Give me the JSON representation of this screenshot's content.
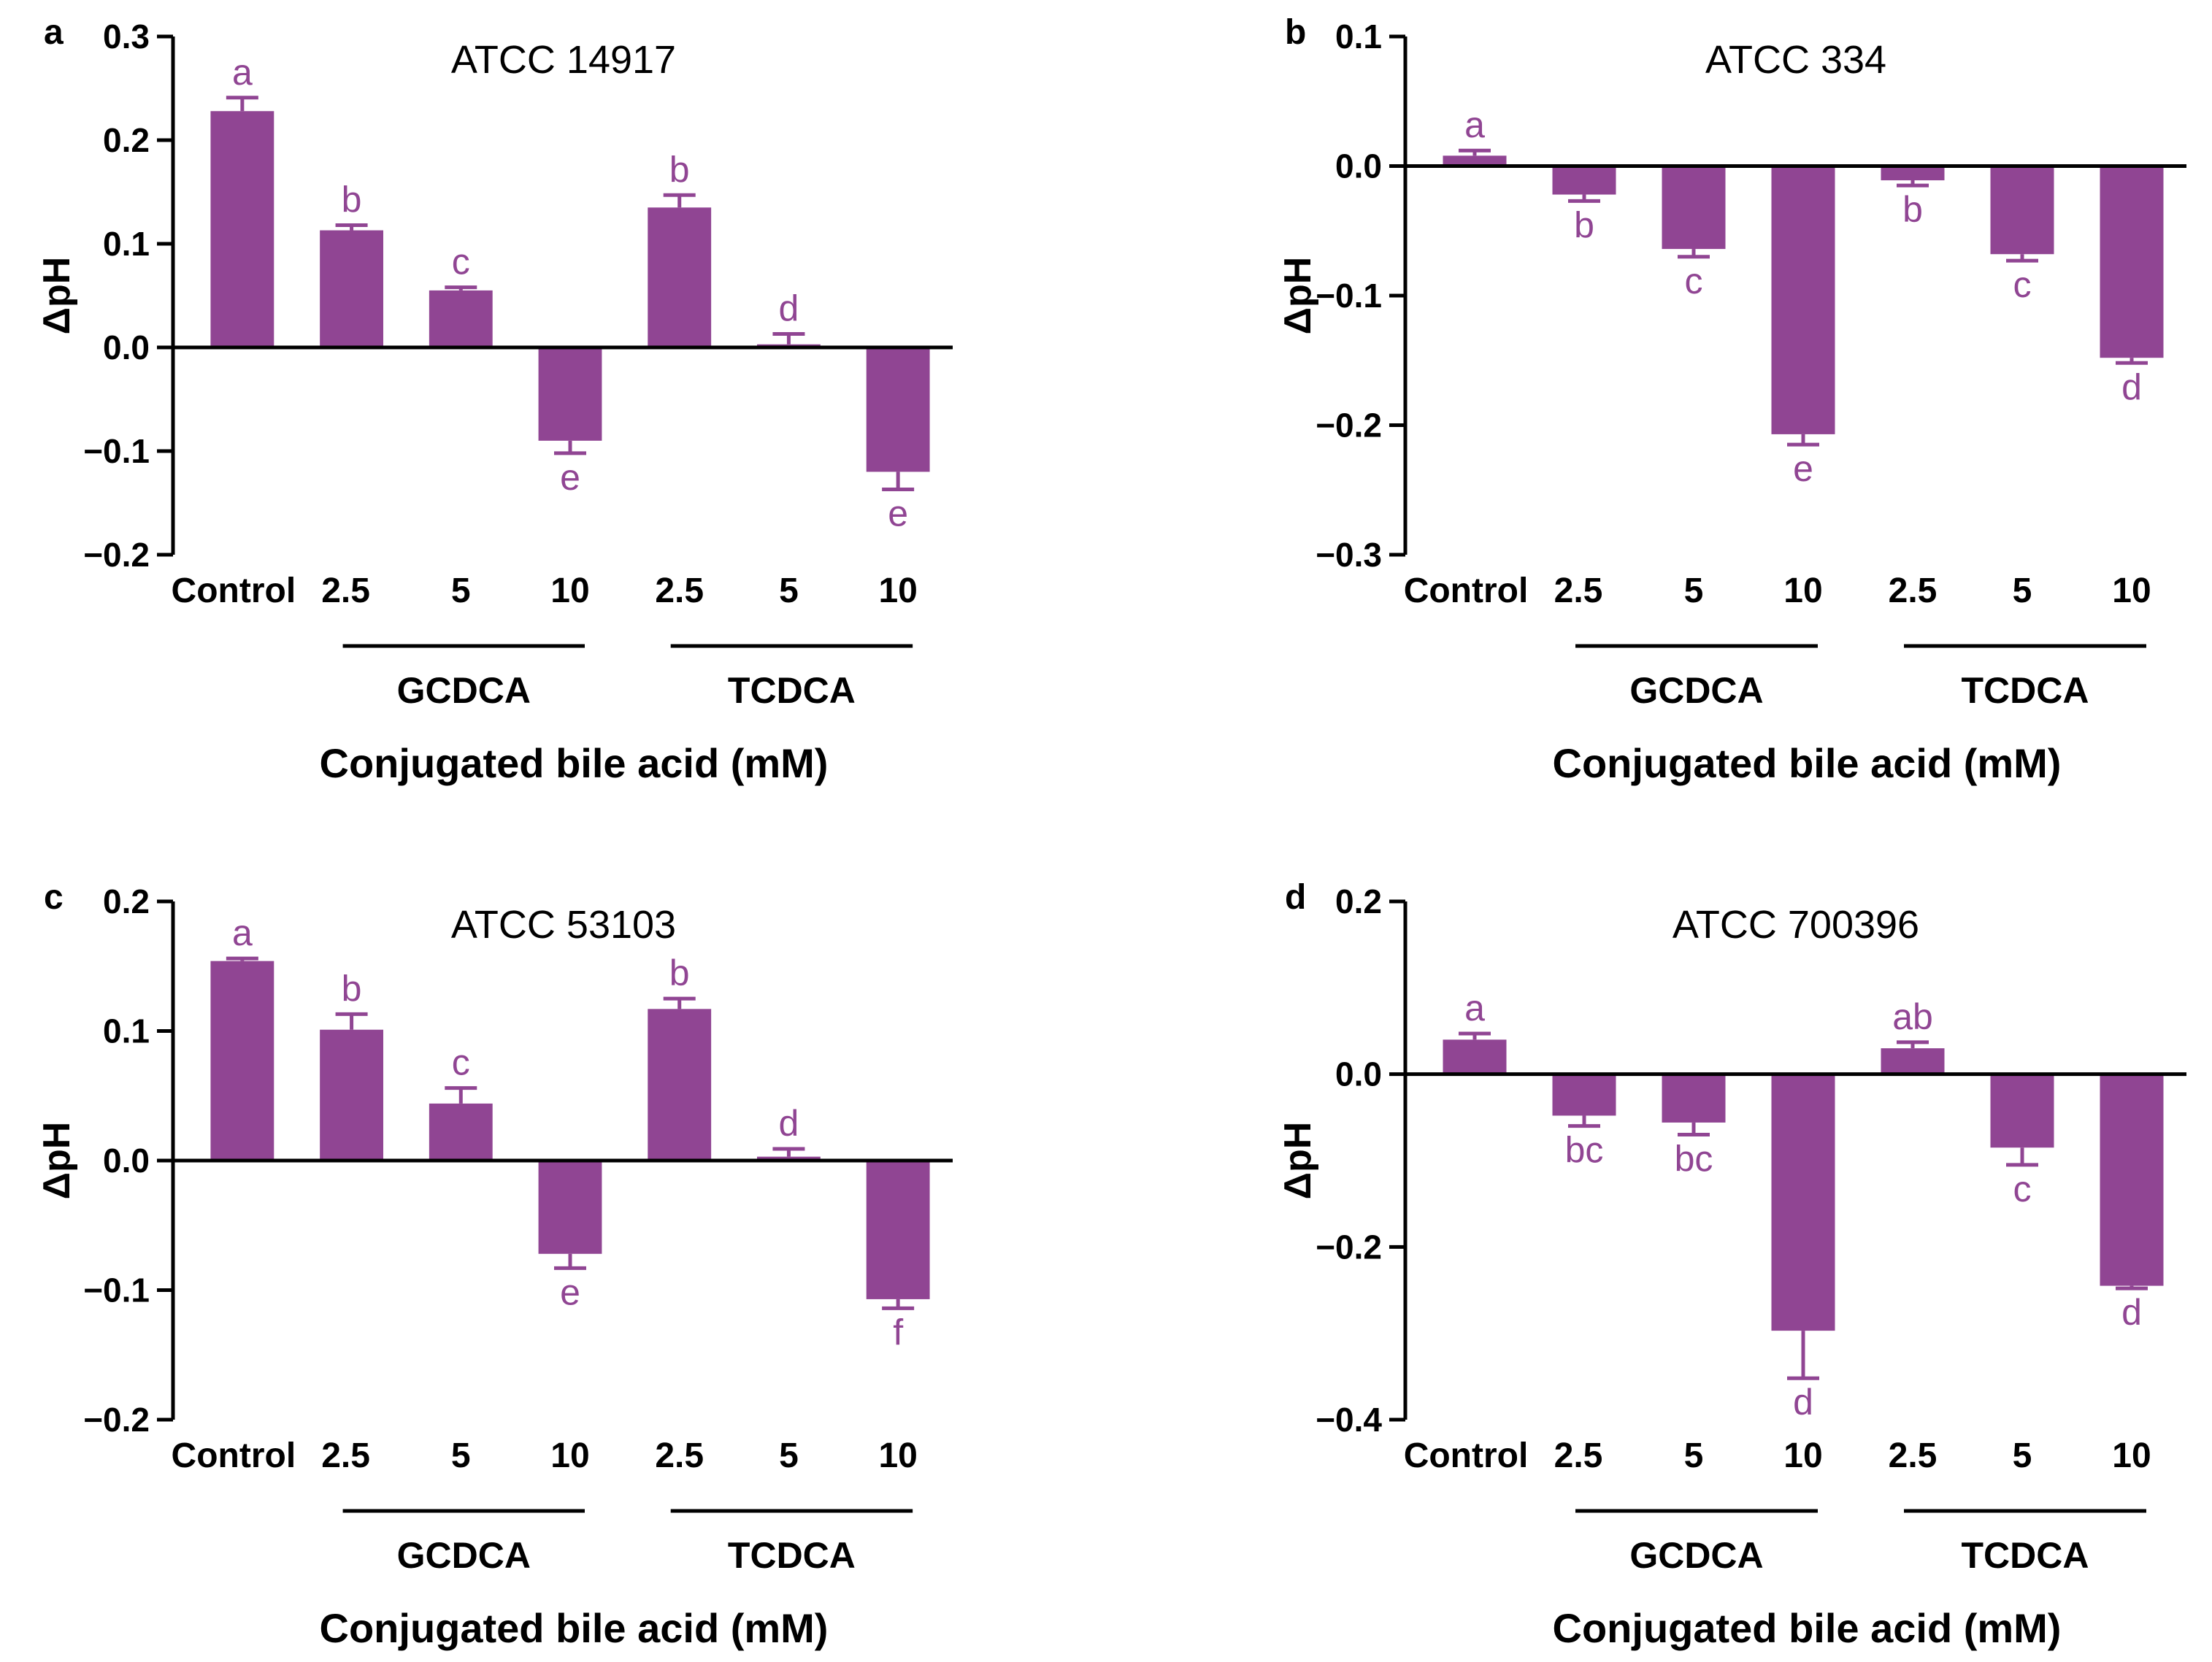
{
  "colors": {
    "bar": "#904593",
    "letter": "#904593",
    "axis": "#000000"
  },
  "chart_data": [
    {
      "type": "bar",
      "panel": "a",
      "title": "ATCC 14917",
      "xlabel": "Conjugated bile acid (mM)",
      "ylabel": "ΔpH",
      "ylim": [
        -0.2,
        0.3
      ],
      "yticks": [
        -0.2,
        -0.1,
        0.0,
        0.1,
        0.2,
        0.3
      ],
      "ytick_labels": [
        "−0.2",
        "−0.1",
        "0.0",
        "0.1",
        "0.2",
        "0.3"
      ],
      "categories": [
        "Control",
        "2.5",
        "5",
        "10",
        "2.5",
        "5",
        "10"
      ],
      "groups": [
        {
          "label": "GCDCA",
          "from": 1,
          "to": 3
        },
        {
          "label": "TCDCA",
          "from": 4,
          "to": 6
        }
      ],
      "values": [
        0.228,
        0.113,
        0.055,
        -0.09,
        0.135,
        0.003,
        -0.12
      ],
      "errors": [
        0.013,
        0.005,
        0.003,
        0.012,
        0.012,
        0.01,
        0.017
      ],
      "letters": [
        "a",
        "b",
        "c",
        "e",
        "b",
        "d",
        "e"
      ]
    },
    {
      "type": "bar",
      "panel": "b",
      "title": "ATCC 334",
      "xlabel": "Conjugated bile acid (mM)",
      "ylabel": "ΔpH",
      "ylim": [
        -0.3,
        0.1
      ],
      "yticks": [
        -0.3,
        -0.2,
        -0.1,
        0.0,
        0.1
      ],
      "ytick_labels": [
        "−0.3",
        "−0.2",
        "−0.1",
        "0.0",
        "0.1"
      ],
      "categories": [
        "Control",
        "2.5",
        "5",
        "10",
        "2.5",
        "5",
        "10"
      ],
      "groups": [
        {
          "label": "GCDCA",
          "from": 1,
          "to": 3
        },
        {
          "label": "TCDCA",
          "from": 4,
          "to": 6
        }
      ],
      "values": [
        0.008,
        -0.022,
        -0.064,
        -0.207,
        -0.011,
        -0.068,
        -0.148
      ],
      "errors": [
        0.004,
        0.005,
        0.006,
        0.008,
        0.004,
        0.005,
        0.004
      ],
      "letters": [
        "a",
        "b",
        "c",
        "e",
        "b",
        "c",
        "d"
      ]
    },
    {
      "type": "bar",
      "panel": "c",
      "title": "ATCC 53103",
      "xlabel": "Conjugated bile acid (mM)",
      "ylabel": "ΔpH",
      "ylim": [
        -0.2,
        0.2
      ],
      "yticks": [
        -0.2,
        -0.1,
        0.0,
        0.1,
        0.2
      ],
      "ytick_labels": [
        "−0.2",
        "−0.1",
        "0.0",
        "0.1",
        "0.2"
      ],
      "categories": [
        "Control",
        "2.5",
        "5",
        "10",
        "2.5",
        "5",
        "10"
      ],
      "groups": [
        {
          "label": "GCDCA",
          "from": 1,
          "to": 3
        },
        {
          "label": "TCDCA",
          "from": 4,
          "to": 6
        }
      ],
      "values": [
        0.154,
        0.101,
        0.044,
        -0.072,
        0.117,
        0.003,
        -0.107
      ],
      "errors": [
        0.002,
        0.012,
        0.012,
        0.011,
        0.008,
        0.006,
        0.007
      ],
      "letters": [
        "a",
        "b",
        "c",
        "e",
        "b",
        "d",
        "f"
      ]
    },
    {
      "type": "bar",
      "panel": "d",
      "title": "ATCC 700396",
      "xlabel": "Conjugated bile acid (mM)",
      "ylabel": "ΔpH",
      "ylim": [
        -0.4,
        0.2
      ],
      "yticks": [
        -0.4,
        -0.2,
        0.0,
        0.2
      ],
      "ytick_labels": [
        "−0.4",
        "−0.2",
        "0.0",
        "0.2"
      ],
      "categories": [
        "Control",
        "2.5",
        "5",
        "10",
        "2.5",
        "5",
        "10"
      ],
      "groups": [
        {
          "label": "GCDCA",
          "from": 1,
          "to": 3
        },
        {
          "label": "TCDCA",
          "from": 4,
          "to": 6
        }
      ],
      "values": [
        0.04,
        -0.048,
        -0.056,
        -0.297,
        0.03,
        -0.085,
        -0.245
      ],
      "errors": [
        0.007,
        0.012,
        0.014,
        0.055,
        0.007,
        0.02,
        0.003
      ],
      "letters": [
        "a",
        "bc",
        "bc",
        "d",
        "ab",
        "c",
        "d"
      ]
    }
  ]
}
